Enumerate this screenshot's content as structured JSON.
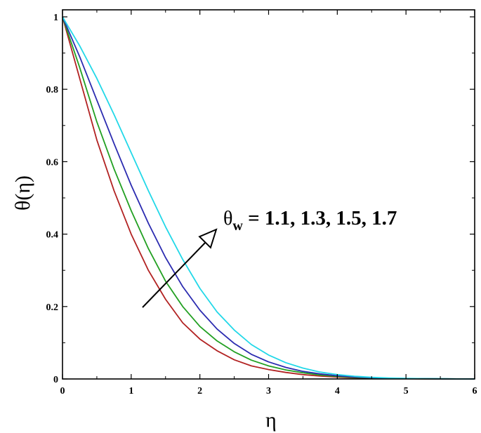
{
  "chart_data": {
    "type": "line",
    "xlabel": "η",
    "ylabel": "θ(η)",
    "xlim": [
      0,
      6
    ],
    "ylim": [
      0,
      1
    ],
    "xticks": [
      "0",
      "1",
      "2",
      "3",
      "4",
      "5",
      "6"
    ],
    "yticks": [
      "0",
      "0.2",
      "0.4",
      "0.6",
      "0.8",
      "1"
    ],
    "grid": false,
    "legend": "none",
    "annotation": {
      "symbol": "θ",
      "subscript": "w",
      "text": " = 1.1, 1.3, 1.5, 1.7",
      "arrow_direction": "increasing"
    },
    "x": [
      0,
      0.25,
      0.5,
      0.75,
      1,
      1.25,
      1.5,
      1.75,
      2,
      2.25,
      2.5,
      2.75,
      3,
      3.25,
      3.5,
      3.75,
      4,
      4.25,
      4.5,
      4.75,
      5,
      5.25,
      5.5,
      5.75,
      6
    ],
    "series": [
      {
        "color": "#b22222",
        "values": [
          1,
          0.83,
          0.66,
          0.52,
          0.4,
          0.3,
          0.22,
          0.155,
          0.11,
          0.078,
          0.053,
          0.036,
          0.026,
          0.018,
          0.012,
          0.008,
          0.005,
          0.003,
          0.002,
          0.001,
          0.0007,
          0.0004,
          0.0002,
          0.0001,
          0
        ]
      },
      {
        "color": "#22a022",
        "values": [
          1,
          0.86,
          0.71,
          0.58,
          0.465,
          0.36,
          0.27,
          0.2,
          0.145,
          0.105,
          0.075,
          0.052,
          0.036,
          0.025,
          0.017,
          0.011,
          0.007,
          0.004,
          0.0025,
          0.0015,
          0.0009,
          0.0005,
          0.0003,
          0.0001,
          0
        ]
      },
      {
        "color": "#2b2bb0",
        "values": [
          1,
          0.89,
          0.77,
          0.65,
          0.535,
          0.43,
          0.335,
          0.255,
          0.19,
          0.138,
          0.098,
          0.068,
          0.047,
          0.032,
          0.021,
          0.014,
          0.009,
          0.0055,
          0.0035,
          0.002,
          0.0012,
          0.0007,
          0.0004,
          0.0002,
          0
        ]
      },
      {
        "color": "#22d8e8",
        "values": [
          1,
          0.92,
          0.83,
          0.73,
          0.625,
          0.52,
          0.42,
          0.33,
          0.25,
          0.185,
          0.135,
          0.095,
          0.066,
          0.045,
          0.03,
          0.019,
          0.012,
          0.0075,
          0.0045,
          0.0027,
          0.0016,
          0.0009,
          0.0005,
          0.0002,
          0
        ]
      }
    ]
  }
}
